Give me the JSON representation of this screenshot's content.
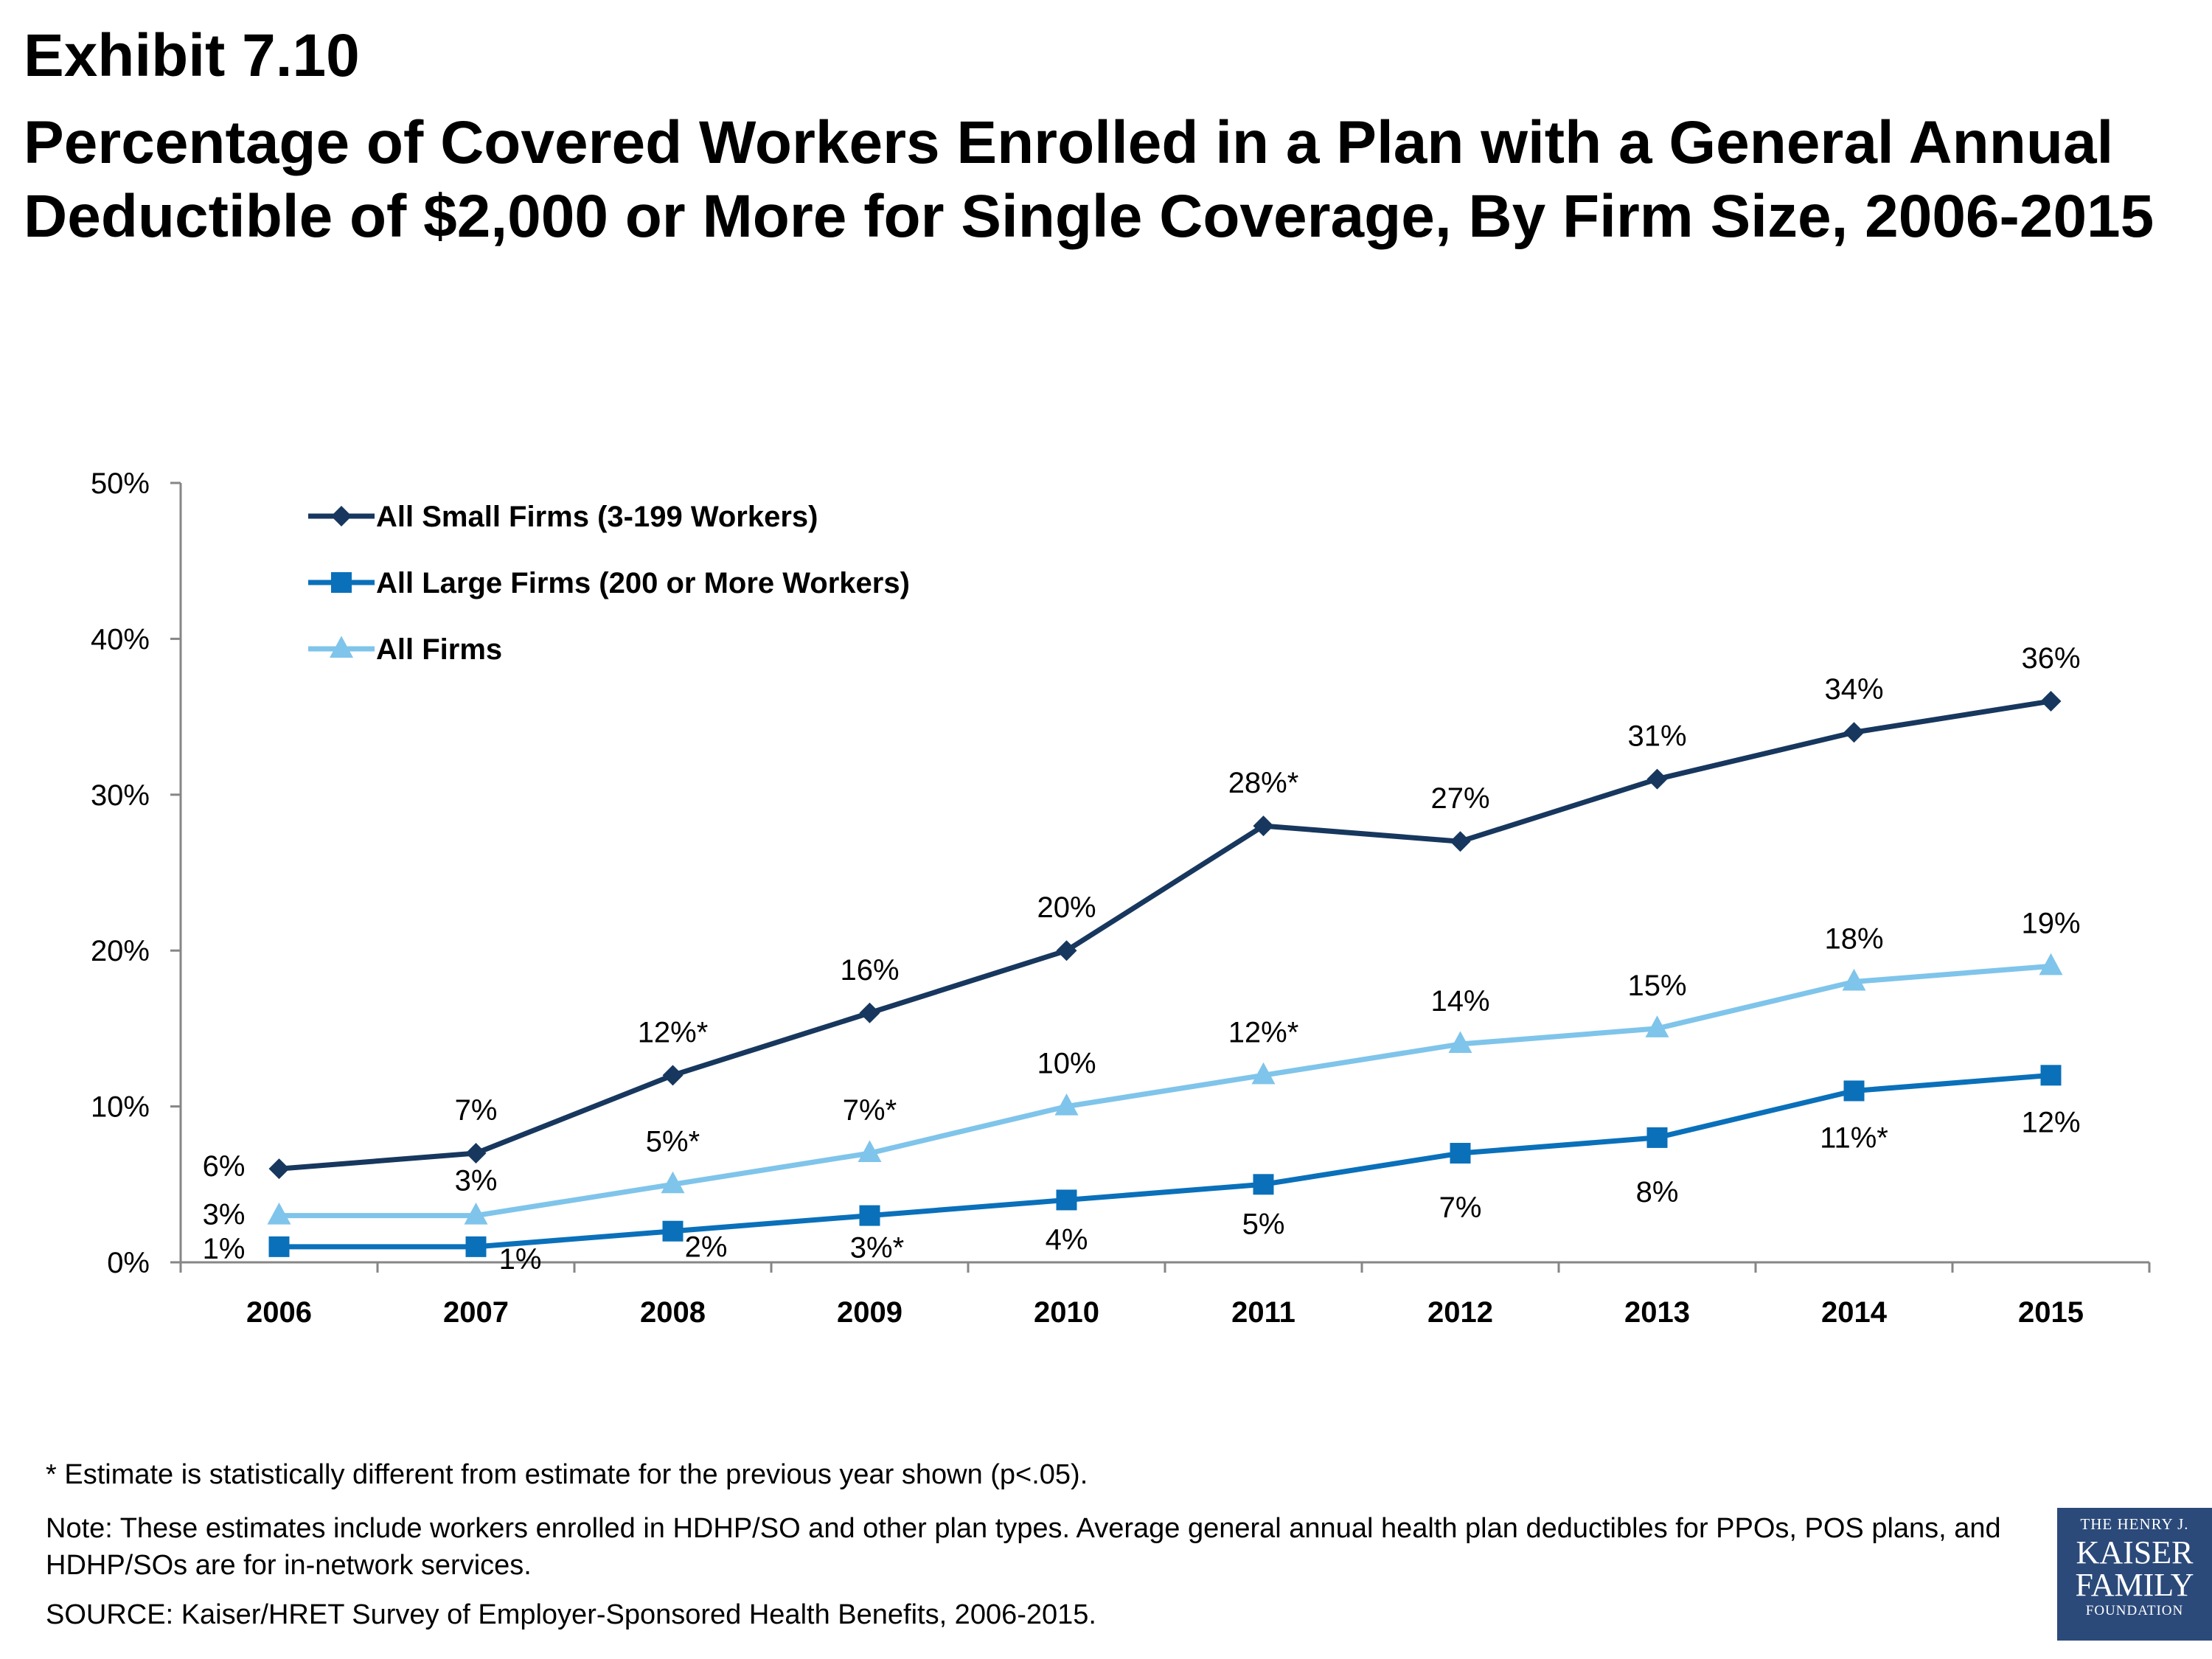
{
  "header": {
    "exhibit": "Exhibit 7.10",
    "title": "Percentage of Covered Workers Enrolled in a Plan with a General Annual Deductible of $2,000 or More for Single Coverage, By Firm Size, 2006-2015"
  },
  "chart_data": {
    "type": "line",
    "title": "",
    "xlabel": "",
    "ylabel": "",
    "categories": [
      "2006",
      "2007",
      "2008",
      "2009",
      "2010",
      "2011",
      "2012",
      "2013",
      "2014",
      "2015"
    ],
    "ylim": [
      0,
      50
    ],
    "yticks": [
      0,
      10,
      20,
      30,
      40,
      50
    ],
    "ytick_labels": [
      "0%",
      "10%",
      "20%",
      "30%",
      "40%",
      "50%"
    ],
    "grid": false,
    "legend_placement": "top-left",
    "series": [
      {
        "name": "All Small Firms (3-199 Workers)",
        "color": "#17375e",
        "marker": "diamond",
        "values": [
          6,
          7,
          12,
          16,
          20,
          28,
          27,
          31,
          34,
          36
        ],
        "labels": [
          "6%",
          "7%",
          "12%*",
          "16%",
          "20%",
          "28%*",
          "27%",
          "31%",
          "34%",
          "36%"
        ]
      },
      {
        "name": "All Large Firms (200 or More Workers)",
        "color": "#0a70ba",
        "marker": "square",
        "values": [
          1,
          1,
          2,
          3,
          4,
          5,
          7,
          8,
          11,
          12
        ],
        "labels": [
          "1%",
          "1%",
          "2%",
          "3%*",
          "4%",
          "5%",
          "7%",
          "8%",
          "11%*",
          "12%"
        ]
      },
      {
        "name": "All Firms",
        "color": "#7fc4ea",
        "marker": "triangle",
        "values": [
          3,
          3,
          5,
          7,
          10,
          12,
          14,
          15,
          18,
          19
        ],
        "labels": [
          "3%",
          "3%",
          "5%*",
          "7%*",
          "10%",
          "12%*",
          "14%",
          "15%",
          "18%",
          "19%"
        ]
      }
    ]
  },
  "footnotes": {
    "significance": "* Estimate is statistically different from estimate for the previous year shown (p<.05).",
    "note": "Note: These estimates include workers enrolled in HDHP/SO and other plan types.   Average general annual health plan deductibles for PPOs, POS plans, and HDHP/SOs are for in-network services.",
    "source": "SOURCE: Kaiser/HRET Survey of Employer-Sponsored Health Benefits, 2006-2015."
  },
  "logo": {
    "line1": "THE HENRY J.",
    "line2": "KAISER",
    "line3": "FAMILY",
    "line4": "FOUNDATION"
  }
}
